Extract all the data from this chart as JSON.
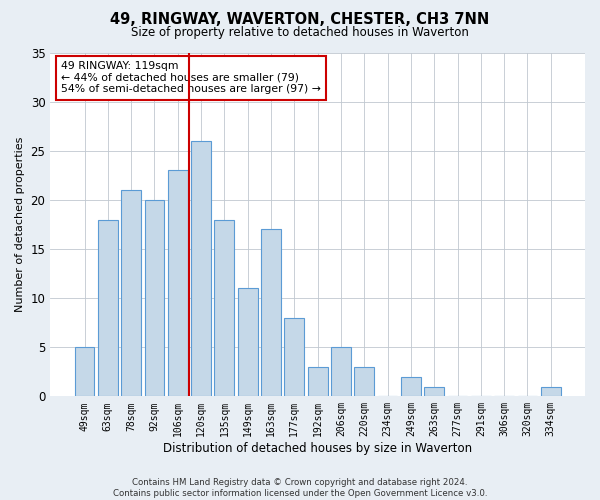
{
  "title": "49, RINGWAY, WAVERTON, CHESTER, CH3 7NN",
  "subtitle": "Size of property relative to detached houses in Waverton",
  "xlabel": "Distribution of detached houses by size in Waverton",
  "ylabel": "Number of detached properties",
  "categories": [
    "49sqm",
    "63sqm",
    "78sqm",
    "92sqm",
    "106sqm",
    "120sqm",
    "135sqm",
    "149sqm",
    "163sqm",
    "177sqm",
    "192sqm",
    "206sqm",
    "220sqm",
    "234sqm",
    "249sqm",
    "263sqm",
    "277sqm",
    "291sqm",
    "306sqm",
    "320sqm",
    "334sqm"
  ],
  "values": [
    5,
    18,
    21,
    20,
    23,
    26,
    18,
    11,
    17,
    8,
    3,
    5,
    3,
    0,
    2,
    1,
    0,
    0,
    0,
    0,
    1
  ],
  "bar_color": "#c5d8e8",
  "bar_edge_color": "#5b9bd5",
  "highlight_index": 5,
  "highlight_line_color": "#cc0000",
  "ylim": [
    0,
    35
  ],
  "yticks": [
    0,
    5,
    10,
    15,
    20,
    25,
    30,
    35
  ],
  "annotation_lines": [
    "49 RINGWAY: 119sqm",
    "← 44% of detached houses are smaller (79)",
    "54% of semi-detached houses are larger (97) →"
  ],
  "annotation_box_color": "#cc0000",
  "footer_line1": "Contains HM Land Registry data © Crown copyright and database right 2024.",
  "footer_line2": "Contains public sector information licensed under the Open Government Licence v3.0.",
  "bg_color": "#e8eef4",
  "plot_bg_color": "#ffffff"
}
